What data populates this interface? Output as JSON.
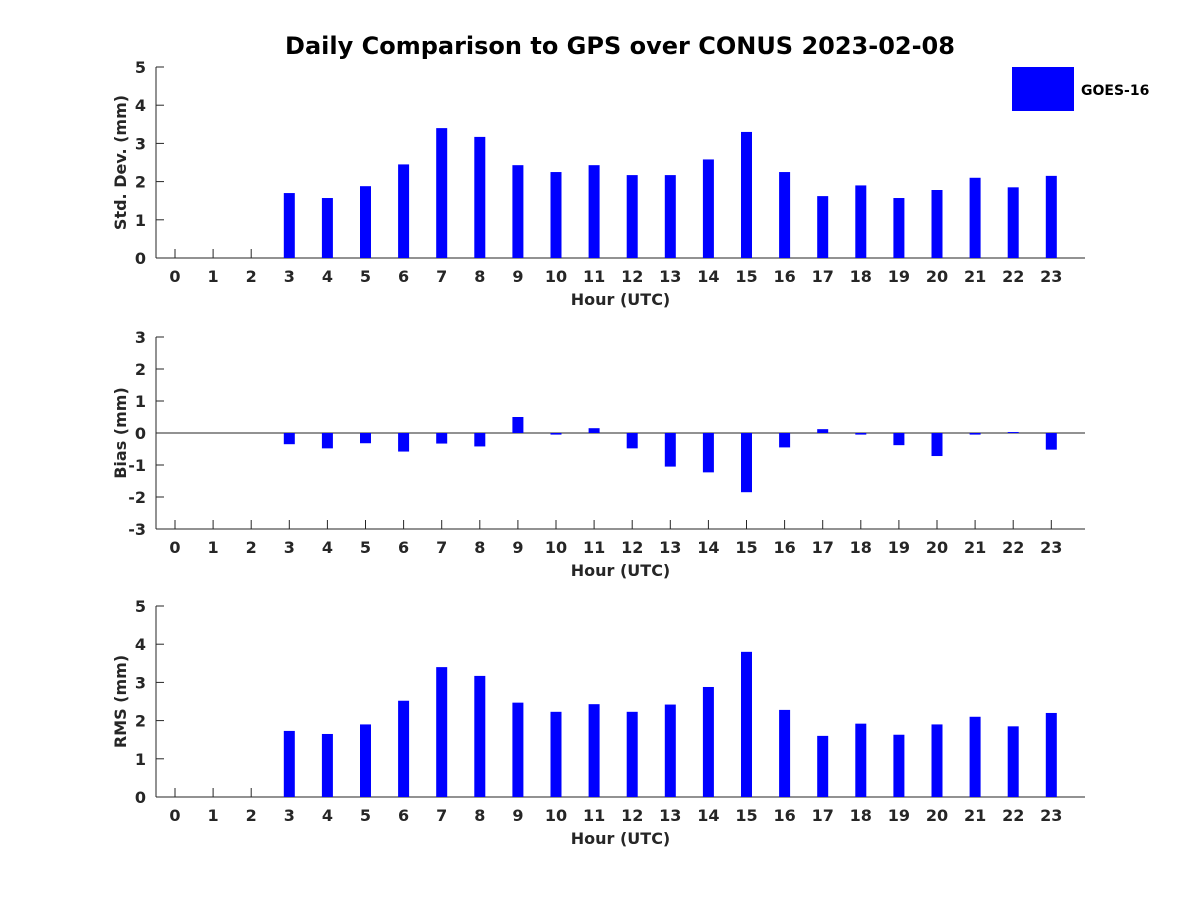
{
  "chart_data": {
    "type": "bar",
    "title": "Daily Comparison to GPS over CONUS 2023-02-08",
    "bar_color": "#0000ff",
    "legend": {
      "label": "GOES-16",
      "placement": "top-right"
    },
    "categories": [
      "0",
      "1",
      "2",
      "3",
      "4",
      "5",
      "6",
      "7",
      "8",
      "9",
      "10",
      "11",
      "12",
      "13",
      "14",
      "15",
      "16",
      "17",
      "18",
      "19",
      "20",
      "21",
      "22",
      "23"
    ],
    "panels": [
      {
        "name": "std-dev",
        "ylabel": "Std. Dev. (mm)",
        "xlabel": "Hour (UTC)",
        "ylim": [
          0,
          5
        ],
        "yticks": [
          0,
          1,
          2,
          3,
          4,
          5
        ],
        "values": [
          null,
          null,
          null,
          1.7,
          1.57,
          1.88,
          2.45,
          3.4,
          3.17,
          2.43,
          2.25,
          2.43,
          2.17,
          2.17,
          2.58,
          3.3,
          2.25,
          1.62,
          1.9,
          1.57,
          1.78,
          2.1,
          1.85,
          2.15
        ]
      },
      {
        "name": "bias",
        "ylabel": "Bias (mm)",
        "xlabel": "Hour (UTC)",
        "ylim": [
          -3,
          3
        ],
        "yticks": [
          -3,
          -2,
          -1,
          0,
          1,
          2,
          3
        ],
        "values": [
          null,
          null,
          null,
          -0.35,
          -0.48,
          -0.32,
          -0.58,
          -0.33,
          -0.42,
          0.5,
          -0.05,
          0.15,
          -0.48,
          -1.05,
          -1.23,
          -1.85,
          -0.45,
          0.12,
          -0.05,
          -0.38,
          -0.72,
          -0.05,
          0.03,
          -0.52
        ]
      },
      {
        "name": "rms",
        "ylabel": "RMS (mm)",
        "xlabel": "Hour (UTC)",
        "ylim": [
          0,
          5
        ],
        "yticks": [
          0,
          1,
          2,
          3,
          4,
          5
        ],
        "values": [
          null,
          null,
          null,
          1.73,
          1.65,
          1.9,
          2.52,
          3.4,
          3.17,
          2.47,
          2.23,
          2.43,
          2.23,
          2.42,
          2.88,
          3.8,
          2.28,
          1.6,
          1.92,
          1.63,
          1.9,
          2.1,
          1.85,
          2.2
        ]
      }
    ]
  }
}
